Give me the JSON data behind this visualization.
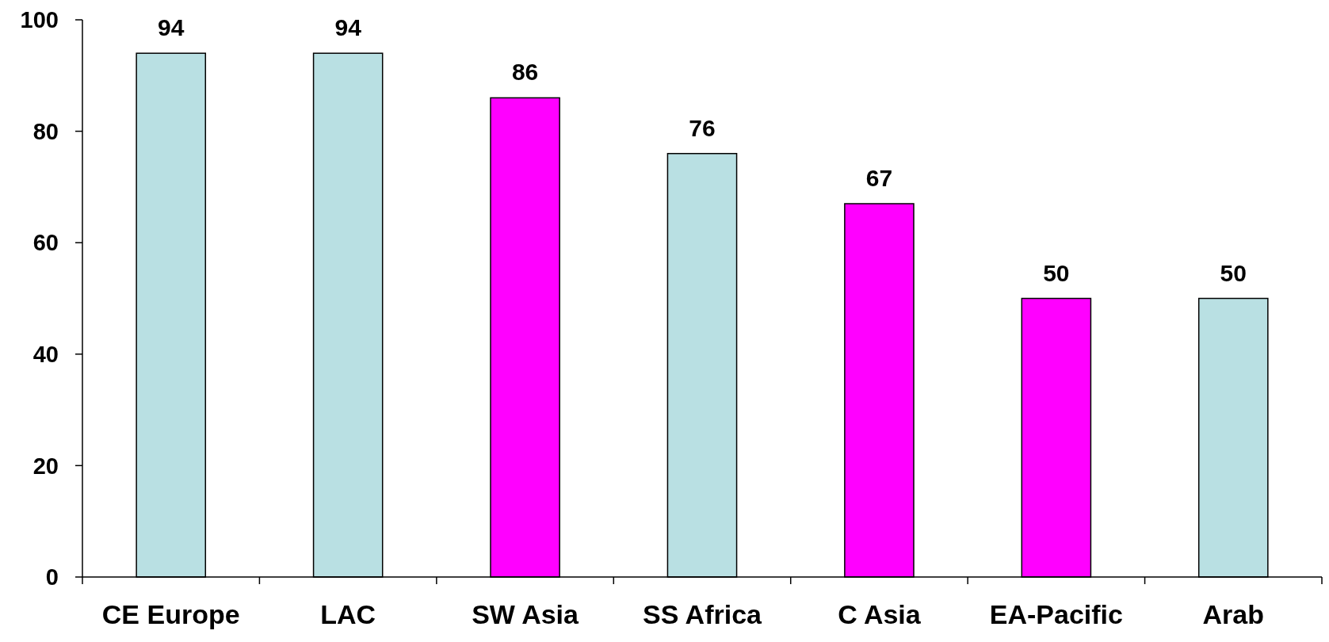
{
  "chart_data": {
    "type": "bar",
    "categories": [
      "CE Europe",
      "LAC",
      "SW Asia",
      "SS Africa",
      "C Asia",
      "EA-Pacific",
      "Arab"
    ],
    "values": [
      94,
      94,
      86,
      76,
      67,
      50,
      50
    ],
    "colors": [
      "#b9e0e3",
      "#b9e0e3",
      "#ff00ff",
      "#b9e0e3",
      "#ff00ff",
      "#ff00ff",
      "#b9e0e3"
    ],
    "ylim": [
      0,
      100
    ],
    "yticks": [
      0,
      20,
      40,
      60,
      80,
      100
    ],
    "data_labels": true
  }
}
